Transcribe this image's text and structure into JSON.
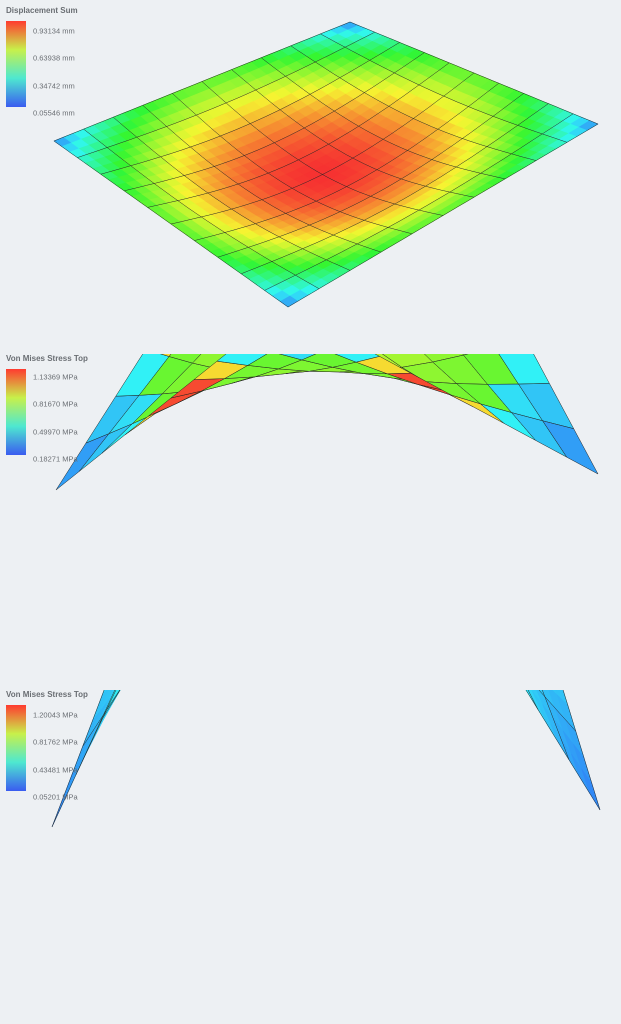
{
  "panels": [
    {
      "id": "displacement",
      "legend_title": "Displacement Sum",
      "legend_labels": [
        "0.93134 mm",
        "0.63938 mm",
        "0.34742 mm",
        "0.05546 mm"
      ],
      "field": "displacement",
      "smooth": true
    },
    {
      "id": "stress-discrete",
      "legend_title": "Von Mises Stress Top",
      "legend_labels": [
        "1.13369 MPa",
        "0.81670 MPa",
        "0.49970 MPa",
        "0.18271 MPa"
      ],
      "field": "stress",
      "smooth": false
    },
    {
      "id": "stress-smooth",
      "legend_title": "Von Mises Stress Top",
      "legend_labels": [
        "1.20043 MPa",
        "0.81762 MPa",
        "0.43481 MPa",
        "0.05201 MPa"
      ],
      "field": "stress",
      "smooth": true
    }
  ],
  "colors": {
    "background": "#edf0f3",
    "legend_top": "#ff3b30",
    "legend_mid": "#c8f04a",
    "legend_low": "#4ee8d0",
    "legend_bottom": "#3a5cf0"
  }
}
